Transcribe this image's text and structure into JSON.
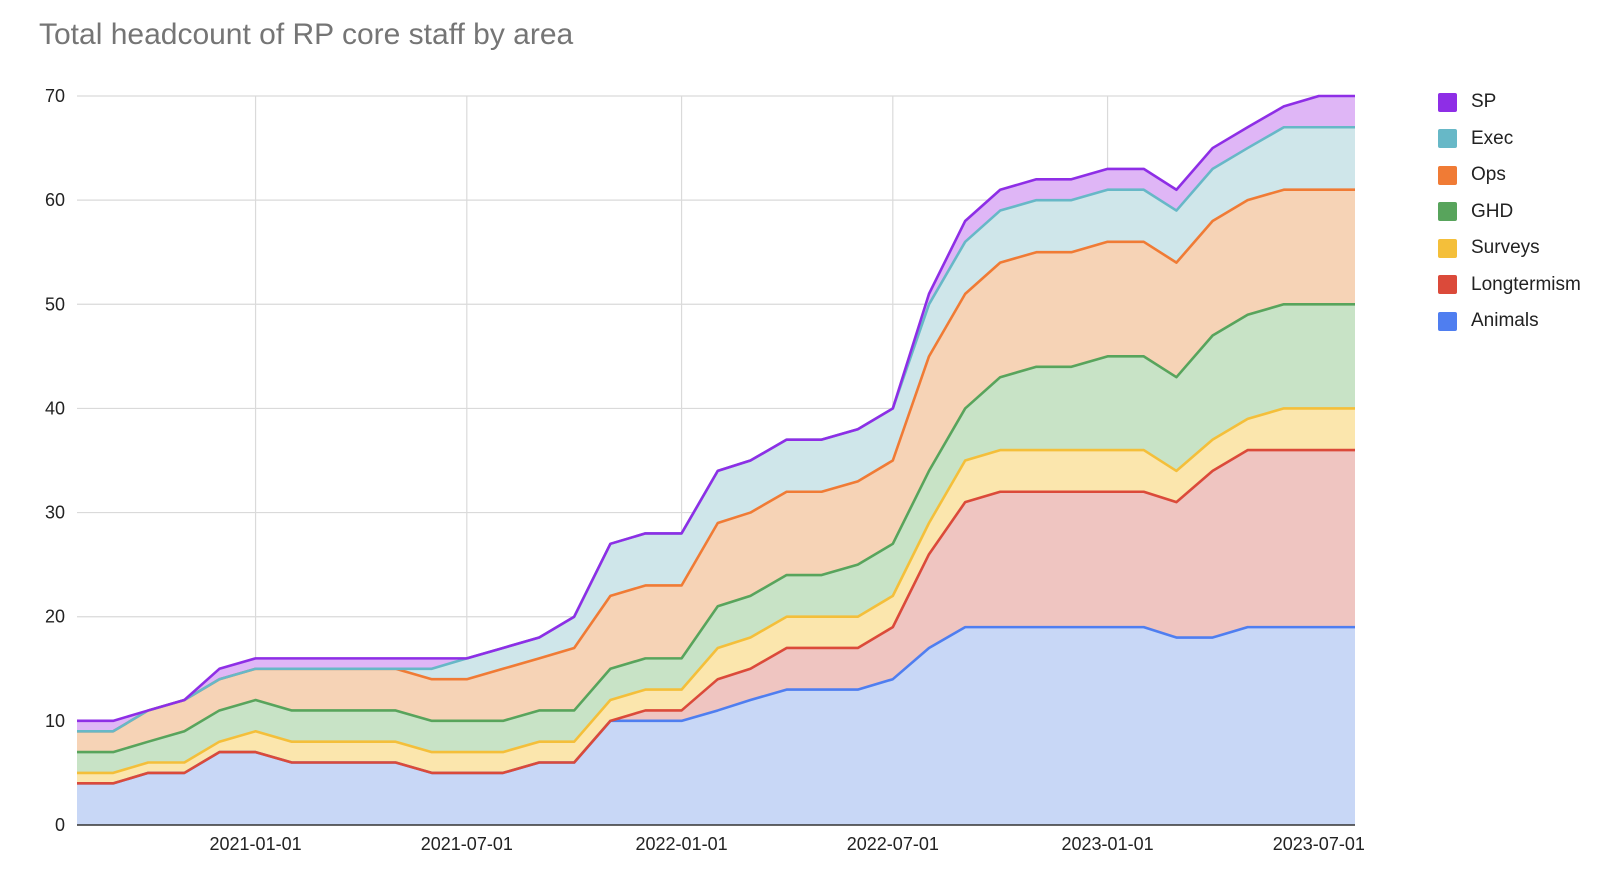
{
  "chart_data": {
    "type": "area",
    "stacked": true,
    "title": "Total headcount of RP core staff by area",
    "xlabel": "",
    "ylabel": "",
    "ylim": [
      0,
      70
    ],
    "yticks": [
      0,
      10,
      20,
      30,
      40,
      50,
      60,
      70
    ],
    "x_start": "2020-08-01",
    "x_end": "2023-08-01",
    "xticks": [
      "2021-01-01",
      "2021-07-01",
      "2022-01-01",
      "2022-07-01",
      "2023-01-01",
      "2023-07-01"
    ],
    "x": [
      "2020-08-01",
      "2020-09-01",
      "2020-10-01",
      "2020-11-01",
      "2020-12-01",
      "2021-01-01",
      "2021-02-01",
      "2021-03-01",
      "2021-04-01",
      "2021-05-01",
      "2021-06-01",
      "2021-07-01",
      "2021-08-01",
      "2021-09-01",
      "2021-10-01",
      "2021-11-01",
      "2021-12-01",
      "2022-01-01",
      "2022-02-01",
      "2022-03-01",
      "2022-04-01",
      "2022-05-01",
      "2022-06-01",
      "2022-07-01",
      "2022-08-01",
      "2022-09-01",
      "2022-10-01",
      "2022-11-01",
      "2022-12-01",
      "2023-01-01",
      "2023-02-01",
      "2023-03-01",
      "2023-04-01",
      "2023-05-01",
      "2023-06-01",
      "2023-07-01",
      "2023-08-01"
    ],
    "series": [
      {
        "name": "Animals",
        "color": "#4f7ef0",
        "fill": "#c8d7f6",
        "values": [
          4,
          4,
          5,
          5,
          7,
          7,
          6,
          6,
          6,
          6,
          5,
          5,
          5,
          6,
          6,
          10,
          10,
          10,
          11,
          12,
          13,
          13,
          13,
          14,
          17,
          19,
          19,
          19,
          19,
          19,
          19,
          18,
          18,
          19,
          19,
          19,
          19
        ]
      },
      {
        "name": "Longtermism",
        "color": "#db4a3a",
        "fill": "#efc5c1",
        "values": [
          0,
          0,
          0,
          0,
          0,
          0,
          0,
          0,
          0,
          0,
          0,
          0,
          0,
          0,
          0,
          0,
          1,
          1,
          3,
          3,
          4,
          4,
          4,
          5,
          9,
          12,
          13,
          13,
          13,
          13,
          13,
          13,
          16,
          17,
          17,
          17,
          17
        ]
      },
      {
        "name": "Surveys",
        "color": "#f4bf3a",
        "fill": "#fbe6ad",
        "values": [
          1,
          1,
          1,
          1,
          1,
          2,
          2,
          2,
          2,
          2,
          2,
          2,
          2,
          2,
          2,
          2,
          2,
          2,
          3,
          3,
          3,
          3,
          3,
          3,
          3,
          4,
          4,
          4,
          4,
          4,
          4,
          3,
          3,
          3,
          4,
          4,
          4
        ]
      },
      {
        "name": "GHD",
        "color": "#58a45c",
        "fill": "#c8e3c6",
        "values": [
          2,
          2,
          2,
          3,
          3,
          3,
          3,
          3,
          3,
          3,
          3,
          3,
          3,
          3,
          3,
          3,
          3,
          3,
          4,
          4,
          4,
          4,
          5,
          5,
          5,
          5,
          7,
          8,
          8,
          9,
          9,
          9,
          10,
          10,
          10,
          10,
          10
        ]
      },
      {
        "name": "Ops",
        "color": "#f07b35",
        "fill": "#f6d3b6",
        "values": [
          2,
          2,
          3,
          3,
          3,
          3,
          4,
          4,
          4,
          4,
          4,
          4,
          5,
          5,
          6,
          7,
          7,
          7,
          8,
          8,
          8,
          8,
          8,
          8,
          11,
          11,
          11,
          11,
          11,
          11,
          11,
          11,
          11,
          11,
          11,
          11,
          11
        ]
      },
      {
        "name": "Exec",
        "color": "#67b8c7",
        "fill": "#cfe6ea",
        "values": [
          0,
          0,
          0,
          0,
          0,
          0,
          0,
          0,
          0,
          0,
          1,
          2,
          2,
          2,
          3,
          5,
          5,
          5,
          5,
          5,
          5,
          5,
          5,
          5,
          5,
          5,
          5,
          5,
          5,
          5,
          5,
          5,
          5,
          5,
          6,
          6,
          6
        ]
      },
      {
        "name": "SP",
        "color": "#8e2ee6",
        "fill": "#dfb6f6",
        "values": [
          1,
          1,
          0,
          0,
          1,
          1,
          1,
          1,
          1,
          1,
          1,
          0,
          0,
          0,
          0,
          0,
          0,
          0,
          0,
          0,
          0,
          0,
          0,
          0,
          1,
          2,
          2,
          2,
          2,
          2,
          2,
          2,
          2,
          2,
          2,
          3,
          3
        ]
      }
    ],
    "legend": {
      "position": "right",
      "order": [
        "SP",
        "Exec",
        "Ops",
        "GHD",
        "Surveys",
        "Longtermism",
        "Animals"
      ]
    }
  }
}
